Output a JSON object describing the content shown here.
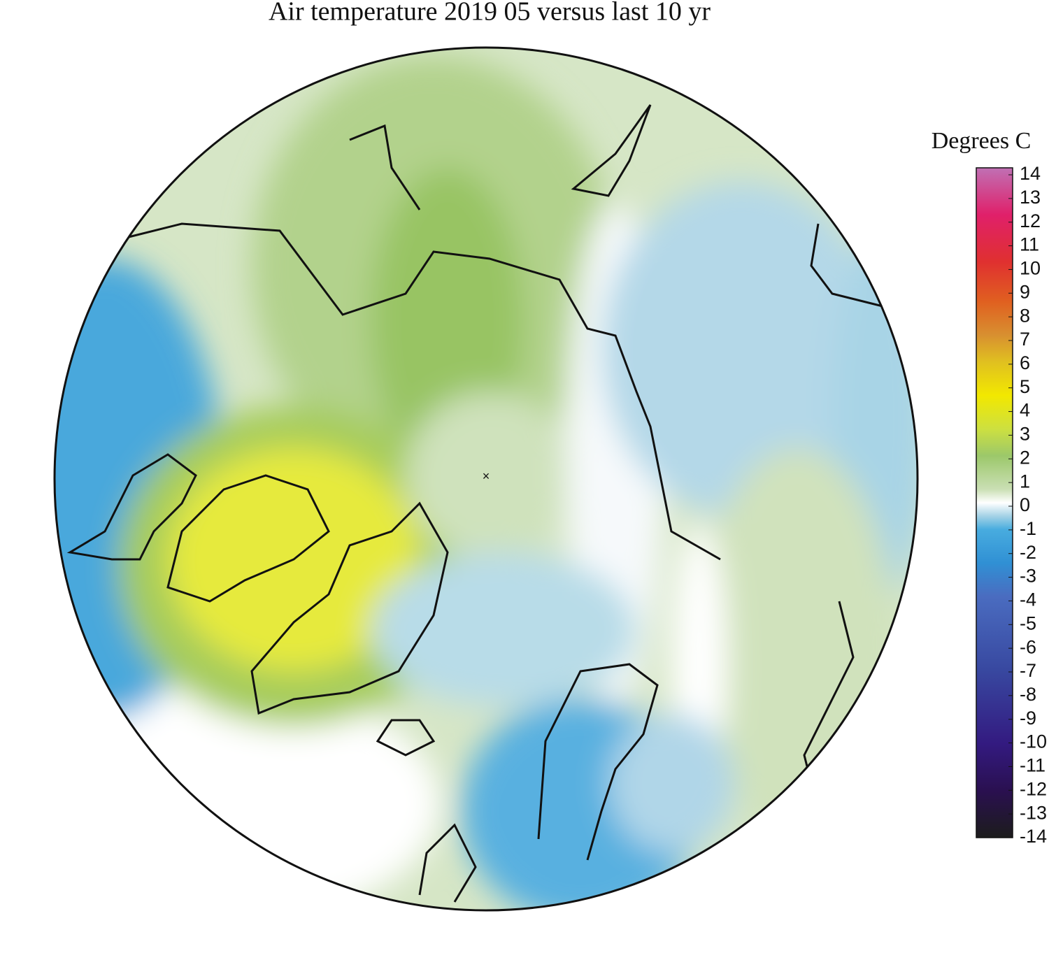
{
  "title": "Air temperature 2019 05 versus last 10 yr",
  "colorbar": {
    "label": "Degrees C",
    "range": [
      -14,
      14
    ],
    "ticks": [
      14,
      13,
      12,
      11,
      10,
      9,
      8,
      7,
      6,
      5,
      4,
      3,
      2,
      1,
      0,
      -1,
      -2,
      -3,
      -4,
      -5,
      -6,
      -7,
      -8,
      -9,
      -10,
      -11,
      -12,
      -13,
      -14
    ]
  }
}
